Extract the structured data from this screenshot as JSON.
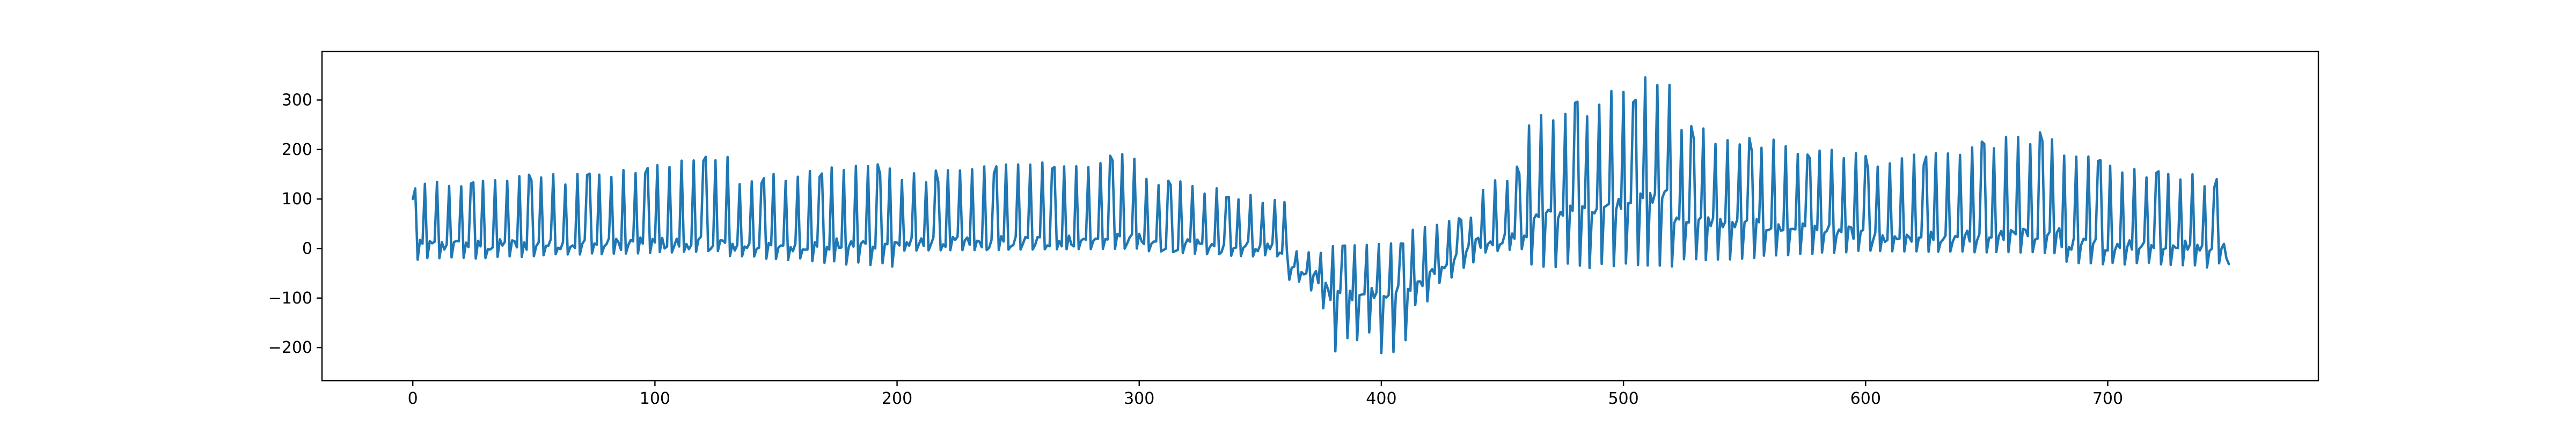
{
  "chart_data": {
    "type": "line",
    "title": "",
    "xlabel": "",
    "ylabel": "",
    "xlim": [
      -37.5,
      787
    ],
    "ylim": [
      -267,
      398
    ],
    "xticks": [
      0,
      100,
      200,
      300,
      400,
      500,
      600,
      700
    ],
    "yticks": [
      -200,
      -100,
      0,
      100,
      200,
      300
    ],
    "xtick_labels": [
      "0",
      "100",
      "200",
      "300",
      "400",
      "500",
      "600",
      "700"
    ],
    "ytick_labels": [
      "−200",
      "−100",
      "0",
      "100",
      "200",
      "300"
    ],
    "grid": false,
    "legend": "none",
    "line_color": "#1f77b4",
    "spike_period": 4.8,
    "segments": [
      {
        "x": [
          0,
          60
        ],
        "baseline": [
          5,
          8
        ],
        "peak": [
          135,
          165
        ],
        "trough": [
          -25,
          -15
        ]
      },
      {
        "x": [
          60,
          130
        ],
        "baseline": [
          8,
          12
        ],
        "peak": [
          150,
          195
        ],
        "trough": [
          -15,
          -5
        ]
      },
      {
        "x": [
          130,
          200
        ],
        "baseline": [
          5,
          10
        ],
        "peak": [
          145,
          180
        ],
        "trough": [
          -15,
          -40
        ]
      },
      {
        "x": [
          200,
          300
        ],
        "baseline": [
          10,
          18
        ],
        "peak": [
          150,
          200
        ],
        "trough": [
          -5,
          0
        ]
      },
      {
        "x": [
          300,
          360
        ],
        "baseline": [
          10,
          0
        ],
        "peak": [
          150,
          100
        ],
        "trough": [
          -5,
          -20
        ]
      },
      {
        "x": [
          360,
          378
        ],
        "baseline": [
          -20,
          -70
        ],
        "peak": [
          -5,
          -10
        ],
        "trough": [
          -60,
          -140
        ]
      },
      {
        "x": [
          378,
          412
        ],
        "baseline": [
          -95,
          -85
        ],
        "peak": [
          5,
          12
        ],
        "trough": [
          -225,
          -220
        ]
      },
      {
        "x": [
          412,
          440
        ],
        "baseline": [
          -80,
          10
        ],
        "peak": [
          40,
          70
        ],
        "trough": [
          -140,
          -20
        ]
      },
      {
        "x": [
          440,
          460
        ],
        "baseline": [
          10,
          30
        ],
        "peak": [
          120,
          180
        ],
        "trough": [
          -10,
          0
        ]
      },
      {
        "x": [
          460,
          520
        ],
        "baseline": [
          60,
          110
        ],
        "peak": [
          270,
          370
        ],
        "trough": [
          -40,
          -40
        ]
      },
      {
        "x": [
          520,
          600
        ],
        "baseline": [
          60,
          30
        ],
        "peak": [
          260,
          190
        ],
        "trough": [
          -30,
          -5
        ]
      },
      {
        "x": [
          600,
          680
        ],
        "baseline": [
          20,
          30
        ],
        "peak": [
          170,
          250
        ],
        "trough": [
          -5,
          -10
        ]
      },
      {
        "x": [
          680,
          748
        ],
        "baseline": [
          10,
          5
        ],
        "peak": [
          200,
          140
        ],
        "trough": [
          -30,
          -40
        ]
      },
      {
        "x": [
          748,
          750
        ],
        "baseline": [
          -20,
          -30
        ],
        "peak": [
          -20,
          -25
        ],
        "trough": [
          -35,
          -35
        ]
      }
    ]
  }
}
